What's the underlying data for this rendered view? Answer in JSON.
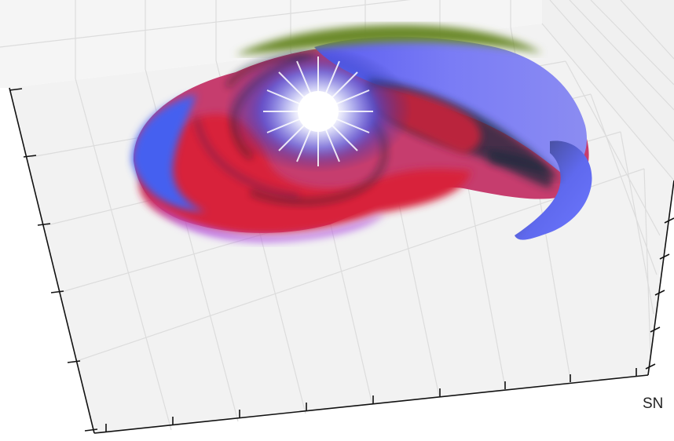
{
  "figure": {
    "corner_label": "SN",
    "colors": {
      "background": "#ffffff",
      "box_pane": "#f2f2f2",
      "grid_line": "#dcdcdc",
      "axis_line": "#111111",
      "surface_red": "#d8233a",
      "surface_blue": "#5a5cf0",
      "surface_dark": "#1e2b3d",
      "surface_violet": "#9a5ce8",
      "surface_green": "#6c8a2c",
      "core_glow": "#ffffff"
    }
  }
}
